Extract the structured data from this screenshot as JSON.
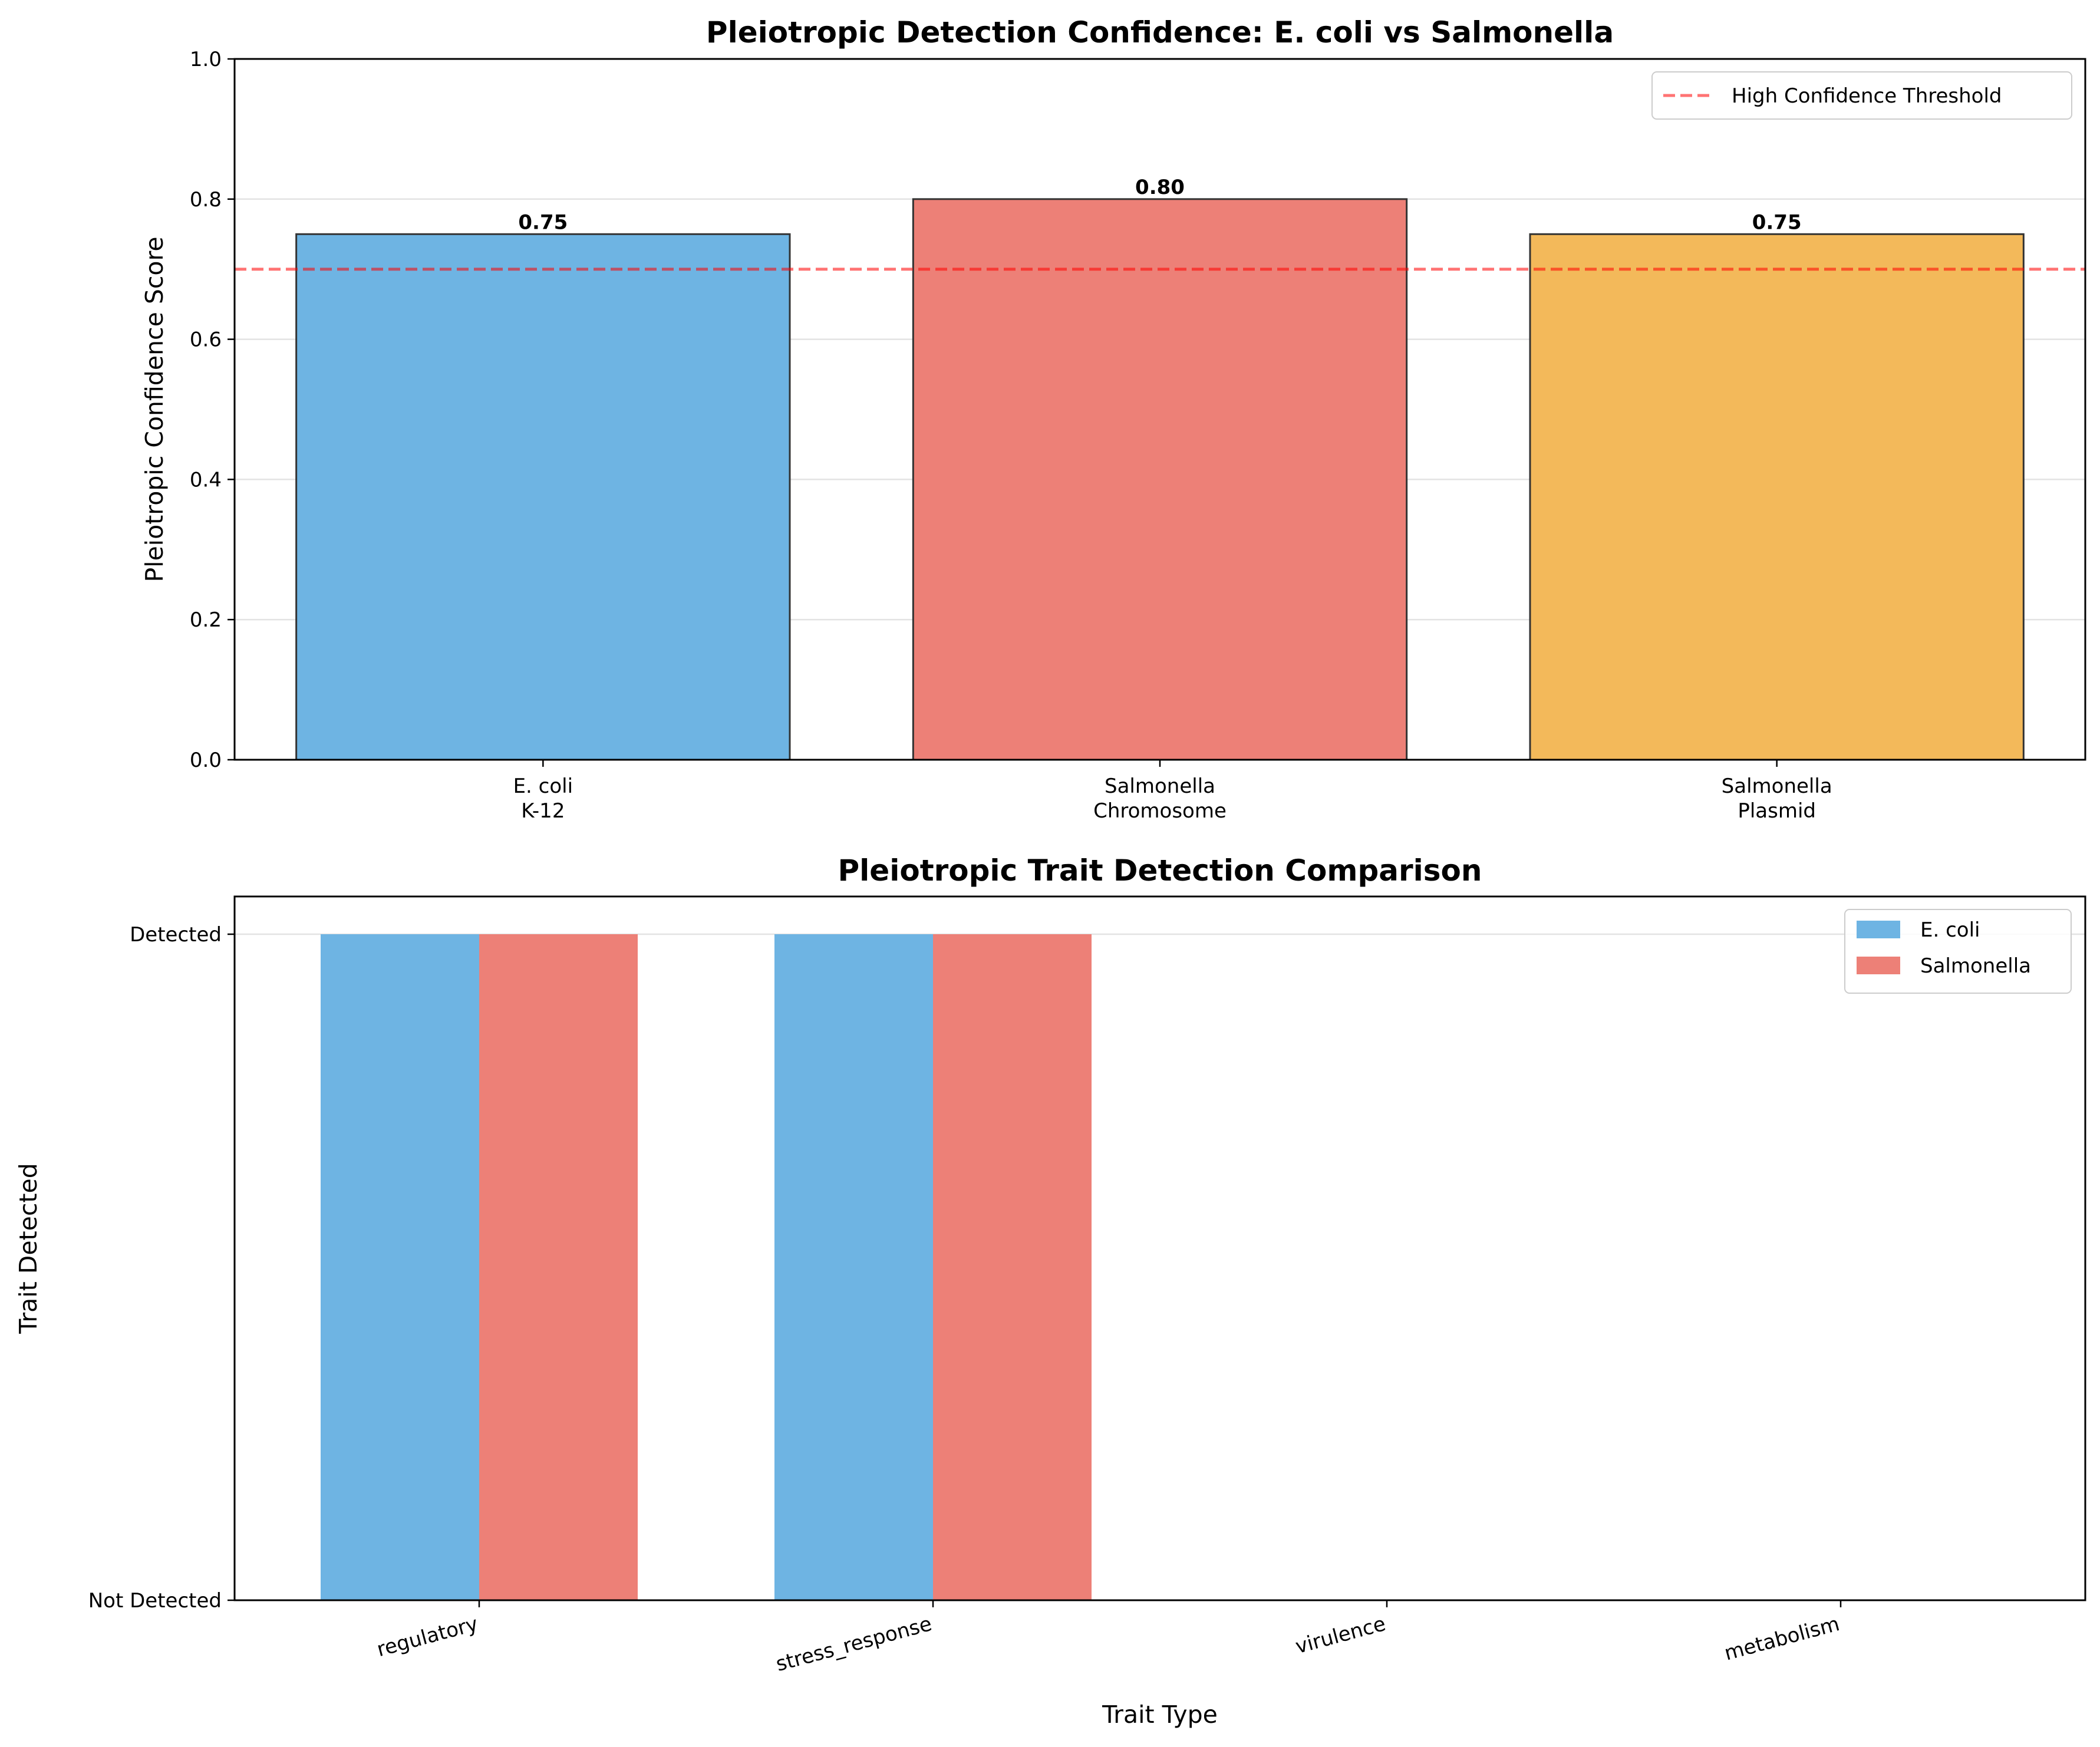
{
  "chart_data": [
    {
      "type": "bar",
      "title": "Pleiotropic Detection Confidence: E. coli vs Salmonella",
      "xlabel": "",
      "ylabel": "Pleiotropic Confidence Score",
      "categories": [
        [
          "E. coli",
          "K-12"
        ],
        [
          "Salmonella",
          "Chromosome"
        ],
        [
          "Salmonella",
          "Plasmid"
        ]
      ],
      "values": [
        0.75,
        0.8,
        0.75
      ],
      "value_labels": [
        "0.75",
        "0.80",
        "0.75"
      ],
      "colors": [
        "#6EB4E3",
        "#ED8077",
        "#F3B95A"
      ],
      "ylim": [
        0,
        1
      ],
      "yticks": [
        0.0,
        0.2,
        0.4,
        0.6,
        0.8,
        1.0
      ],
      "ytick_labels": [
        "0.0",
        "0.2",
        "0.4",
        "0.6",
        "0.8",
        "1.0"
      ],
      "grid": "horizontal",
      "threshold": {
        "value": 0.7,
        "label": "High Confidence Threshold",
        "color": "#FF0000"
      },
      "legend": {
        "placement": "top-right"
      }
    },
    {
      "type": "bar",
      "title": "Pleiotropic Trait Detection Comparison",
      "xlabel": "Trait Type",
      "ylabel": "Trait Detected",
      "categories": [
        "regulatory",
        "stress_response",
        "virulence",
        "metabolism"
      ],
      "series": [
        {
          "name": "E. coli",
          "values": [
            1,
            1,
            0,
            0
          ],
          "color": "#6EB4E3"
        },
        {
          "name": "Salmonella",
          "values": [
            1,
            1,
            0,
            0
          ],
          "color": "#ED8077"
        }
      ],
      "ylim": [
        0,
        1
      ],
      "yticks": [
        0,
        1
      ],
      "ytick_labels": [
        "Not Detected",
        "Detected"
      ],
      "grid": "horizontal",
      "legend": {
        "placement": "top-right"
      }
    }
  ]
}
